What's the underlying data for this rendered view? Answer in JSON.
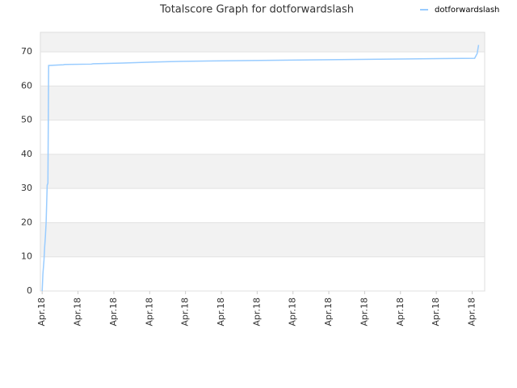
{
  "chart_data": {
    "type": "line",
    "title": "Totalscore Graph for dotforwardslash",
    "x": [
      0,
      0.02,
      0.05,
      0.07,
      0.09,
      0.11,
      0.14,
      0.16,
      0.18,
      0.59,
      0.63,
      1.37,
      1.42,
      2.25,
      3.11,
      3.92,
      5.29,
      7.18,
      9.14,
      11.06,
      12.07,
      12.14,
      12.18
    ],
    "series": [
      {
        "name": "dotforwardslash",
        "color": "#99ccff",
        "values": [
          0,
          5,
          9,
          13,
          16,
          20,
          31,
          31.5,
          66,
          66.2,
          66.3,
          66.4,
          66.5,
          66.7,
          67,
          67.2,
          67.4,
          67.6,
          67.8,
          68,
          68.1,
          69.5,
          72
        ]
      }
    ],
    "xlim": [
      -0.05,
      12.35
    ],
    "xticks": [
      {
        "value": 0,
        "label": "Apr.18"
      },
      {
        "value": 1,
        "label": "Apr.18"
      },
      {
        "value": 2,
        "label": "Apr.18"
      },
      {
        "value": 3,
        "label": "Apr.18"
      },
      {
        "value": 4,
        "label": "Apr.18"
      },
      {
        "value": 5,
        "label": "Apr.18"
      },
      {
        "value": 6,
        "label": "Apr.18"
      },
      {
        "value": 7,
        "label": "Apr.18"
      },
      {
        "value": 8,
        "label": "Apr.18"
      },
      {
        "value": 9,
        "label": "Apr.18"
      },
      {
        "value": 10,
        "label": "Apr.18"
      },
      {
        "value": 11,
        "label": "Apr.18"
      },
      {
        "value": 12,
        "label": "Apr.18"
      }
    ],
    "ylim": [
      0,
      75.7
    ],
    "yticks": [
      0,
      10,
      20,
      30,
      40,
      50,
      60,
      70
    ],
    "grid": true,
    "legend": "top-right"
  }
}
